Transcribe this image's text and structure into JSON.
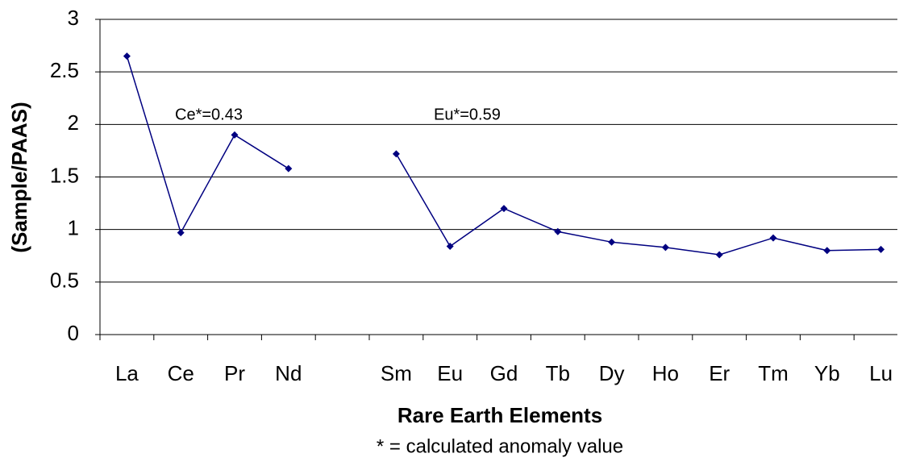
{
  "chart_data": {
    "type": "line",
    "x_label": "Rare Earth Elements",
    "y_label": "(Sample/PAAS)",
    "footnote": "* = calculated anomaly value",
    "annotations": [
      "Ce*=0.43",
      "Eu*=0.59"
    ],
    "categories": [
      "La",
      "Ce",
      "Pr",
      "Nd",
      null,
      "Sm",
      "Eu",
      "Gd",
      "Tb",
      "Dy",
      "Ho",
      "Er",
      "Tm",
      "Yb",
      "Lu"
    ],
    "series": [
      {
        "color": "#000080",
        "values": [
          2.65,
          0.97,
          1.9,
          1.58,
          null,
          1.72,
          0.84,
          1.2,
          0.98,
          0.88,
          0.83,
          0.76,
          0.92,
          0.8,
          0.81
        ]
      }
    ],
    "ylim": [
      0,
      3
    ],
    "yticks": [
      0,
      0.5,
      1,
      1.5,
      2,
      2.5,
      3
    ],
    "grid": true
  }
}
